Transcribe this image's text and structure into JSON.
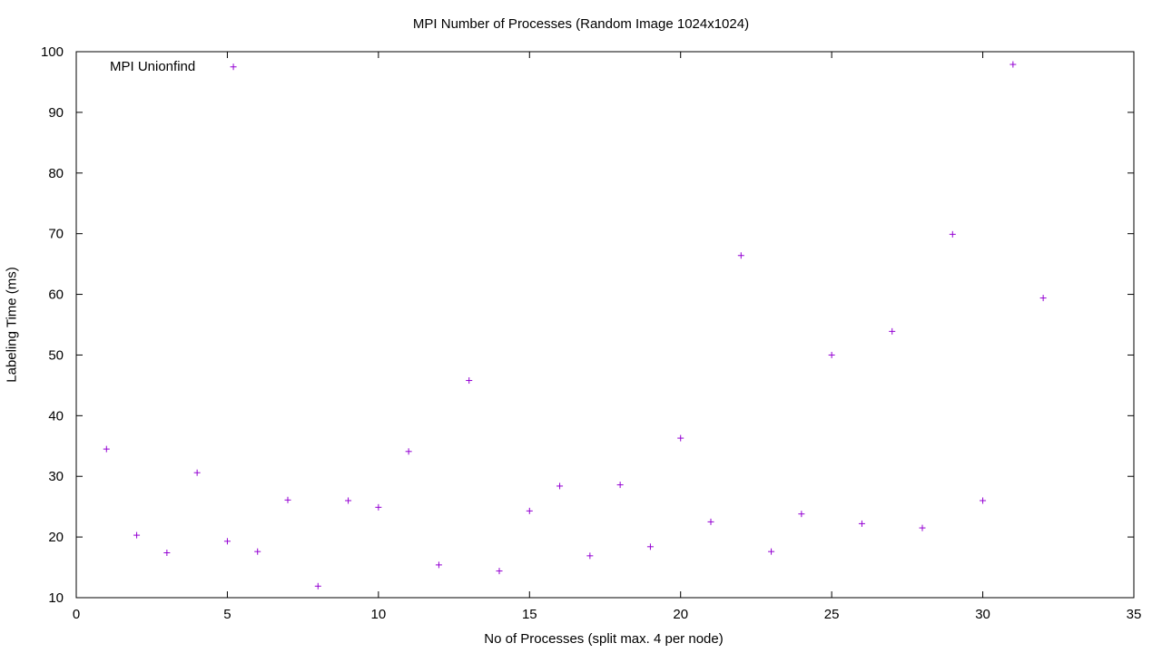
{
  "chart_data": {
    "type": "scatter",
    "title": "MPI Number of Processes (Random Image 1024x1024)",
    "xlabel": "No of Processes (split max. 4 per node)",
    "ylabel": "Labeling Time (ms)",
    "xlim": [
      0,
      35
    ],
    "ylim": [
      10,
      100
    ],
    "xticks": [
      0,
      5,
      10,
      15,
      20,
      25,
      30,
      35
    ],
    "yticks": [
      10,
      20,
      30,
      40,
      50,
      60,
      70,
      80,
      90,
      100
    ],
    "grid": false,
    "legend_position": "top-left",
    "series": [
      {
        "name": "MPI Unionfind",
        "color": "#9400d3",
        "marker": "plus",
        "x": [
          1,
          2,
          3,
          4,
          5,
          5.2,
          6,
          7,
          8,
          9,
          10,
          11,
          12,
          13,
          14,
          15,
          16,
          17,
          18,
          19,
          20,
          21,
          22,
          23,
          24,
          25,
          26,
          27,
          28,
          29,
          30,
          31,
          32
        ],
        "y": [
          34.5,
          20.3,
          17.4,
          30.6,
          19.3,
          97.5,
          17.6,
          26.1,
          11.9,
          26.0,
          24.9,
          34.1,
          15.4,
          45.8,
          14.4,
          24.3,
          28.4,
          16.9,
          28.6,
          18.4,
          36.3,
          22.5,
          66.4,
          17.6,
          23.8,
          50.0,
          22.2,
          53.9,
          21.5,
          69.9,
          26.0,
          97.9,
          59.4
        ]
      }
    ]
  }
}
